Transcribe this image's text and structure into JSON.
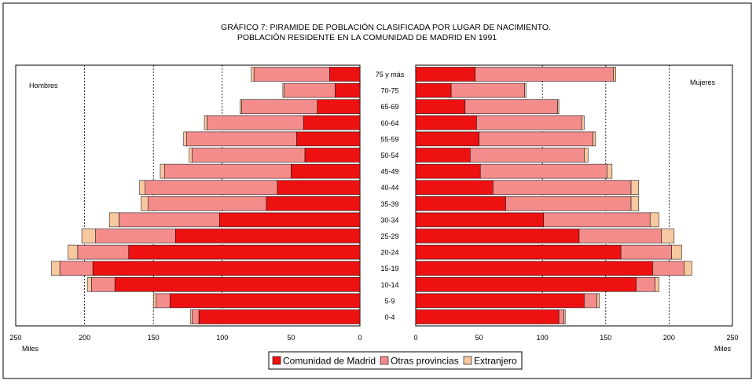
{
  "chart_data": {
    "type": "bar",
    "title_line1": "GRÁFICO 7: PIRAMIDE DE POBLACIÓN CLASIFICADA POR LUGAR DE NACIMIENTO.",
    "title_line2": "POBLACIÓN RESIDENTE EN LA COMUNIDAD DE MADRID EN 1991",
    "left_panel_label": "Hombres",
    "right_panel_label": "Mujeres",
    "left_unit_label": "Miles",
    "right_unit_label": "Miles",
    "xlim": [
      0,
      250
    ],
    "x_ticks_left": [
      "250",
      "200",
      "150",
      "100",
      "50",
      "0"
    ],
    "x_ticks_right": [
      "0",
      "50",
      "100",
      "150",
      "200",
      "250"
    ],
    "x_tick_values": [
      0,
      50,
      100,
      150,
      200,
      250
    ],
    "gridlines": [
      100,
      150,
      200
    ],
    "categories": [
      "75 y más",
      "70-75",
      "65-69",
      "60-64",
      "55-59",
      "50-54",
      "45-49",
      "40-44",
      "35-39",
      "30-34",
      "25-29",
      "20-24",
      "15-19",
      "10-14",
      "5-9",
      "0-4"
    ],
    "legend": {
      "position": "bottom",
      "items": [
        "Comunidad de Madrid",
        "Otras provincias",
        "Extranjero"
      ]
    },
    "colors": {
      "Comunidad de Madrid": "#ee1111",
      "Otras provincias": "#f48c8c",
      "Extranjero": "#f8c8a0"
    },
    "series": {
      "hombres": [
        {
          "name": "Comunidad de Madrid",
          "values": [
            22,
            18,
            31,
            41,
            46,
            40,
            50,
            60,
            68,
            102,
            134,
            168,
            194,
            178,
            138,
            117
          ]
        },
        {
          "name": "Otras provincias",
          "values": [
            55,
            37,
            55,
            70,
            80,
            82,
            92,
            96,
            86,
            73,
            58,
            37,
            24,
            17,
            10,
            5
          ]
        },
        {
          "name": "Extranjero",
          "values": [
            2,
            1,
            1,
            2,
            2,
            2,
            3,
            4,
            5,
            7,
            10,
            7,
            6,
            3,
            2,
            1
          ]
        }
      ],
      "mujeres": [
        {
          "name": "Comunidad de Madrid",
          "values": [
            47,
            28,
            39,
            48,
            50,
            43,
            51,
            61,
            71,
            101,
            129,
            162,
            187,
            174,
            133,
            113
          ]
        },
        {
          "name": "Otras provincias",
          "values": [
            109,
            58,
            73,
            83,
            90,
            90,
            100,
            109,
            99,
            84,
            65,
            40,
            25,
            15,
            10,
            4
          ]
        },
        {
          "name": "Extranjero",
          "values": [
            2,
            1,
            1,
            2,
            2,
            3,
            4,
            6,
            6,
            7,
            10,
            8,
            6,
            3,
            2,
            1
          ]
        }
      ]
    }
  }
}
